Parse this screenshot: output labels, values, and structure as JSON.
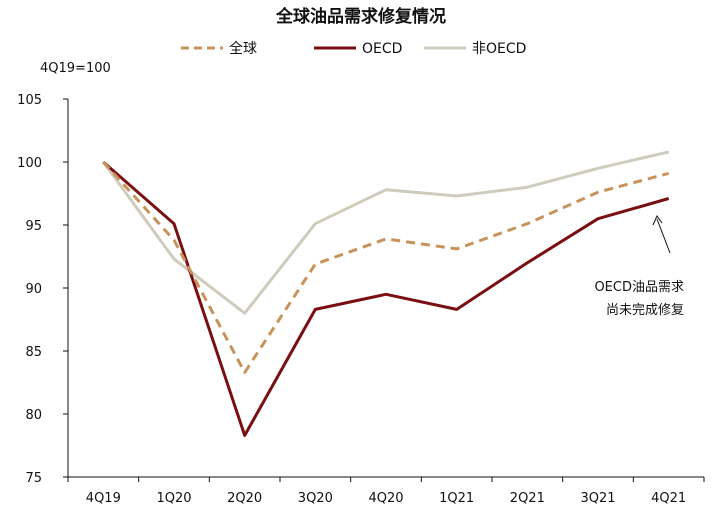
{
  "chart_data": {
    "type": "line",
    "title": "全球油品需求修复情况",
    "unit_label": "4Q19=100",
    "categories": [
      "4Q19",
      "1Q20",
      "2Q20",
      "3Q20",
      "4Q20",
      "1Q21",
      "2Q21",
      "3Q21",
      "4Q21"
    ],
    "ylim": [
      75,
      105
    ],
    "yticks": [
      "105",
      "100",
      "95",
      "90",
      "85",
      "80",
      "75"
    ],
    "ytick_values": [
      105,
      100,
      95,
      90,
      85,
      80,
      75
    ],
    "legend_position": "top",
    "series": [
      {
        "name": "全球",
        "color": "#c8935a",
        "style": "dashed",
        "values": [
          100,
          93.8,
          83.3,
          91.9,
          93.9,
          93.1,
          95.1,
          97.6,
          99.1
        ]
      },
      {
        "name": "OECD",
        "color": "#7a0f12",
        "style": "solid",
        "values": [
          100,
          95.1,
          78.3,
          88.3,
          89.5,
          88.3,
          92.0,
          95.5,
          97.1
        ]
      },
      {
        "name": "非OECD",
        "color": "#cfccbd",
        "style": "solid",
        "values": [
          100,
          92.3,
          88.0,
          95.1,
          97.8,
          97.3,
          98.0,
          99.5,
          100.8
        ]
      }
    ],
    "annotation": {
      "line1": "OECD油品需求",
      "line2": "尚未完成修复"
    }
  }
}
